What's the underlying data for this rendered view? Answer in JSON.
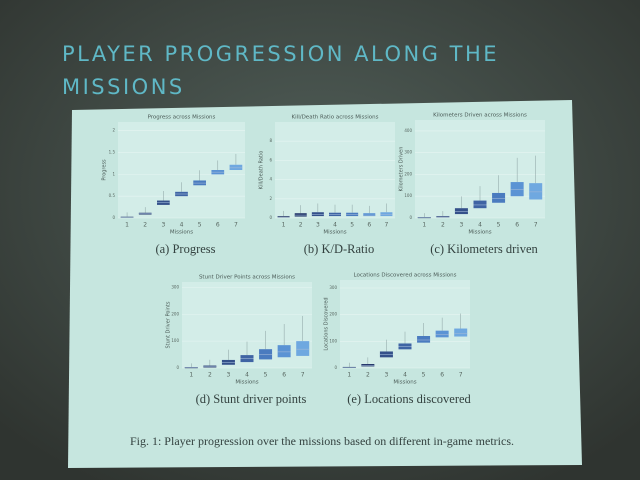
{
  "slide": {
    "title_lines": [
      "PLAYER PROGRESSION ALONG THE",
      "MISSIONS"
    ]
  },
  "figure_caption": "Fig. 1: Player progression over the missions based on different in-game metrics.",
  "box_colors": [
    "#1f2f5a",
    "#26386b",
    "#34508a",
    "#3f64a4",
    "#4a7bbf",
    "#5b93d4",
    "#6fa8e0"
  ],
  "chart_data": [
    {
      "type": "box",
      "title": "Progress across Missions",
      "ylabel": "Progress",
      "xlabel": "Missions",
      "caption": "(a) Progress",
      "categories": [
        "1",
        "2",
        "3",
        "4",
        "5",
        "6",
        "7"
      ],
      "ylim": [
        0,
        2.2
      ],
      "yticks": [
        0,
        0.5,
        1,
        1.5,
        2
      ],
      "q1": [
        0.01,
        0.08,
        0.3,
        0.5,
        0.75,
        1.0,
        1.1
      ],
      "median": [
        0.02,
        0.1,
        0.35,
        0.55,
        0.8,
        1.05,
        1.15
      ],
      "q3": [
        0.03,
        0.12,
        0.4,
        0.6,
        0.86,
        1.1,
        1.22
      ]
    },
    {
      "type": "box",
      "title": "Kill/Death Ratio across Missions",
      "ylabel": "Kill/Death Ratio",
      "xlabel": "Missions",
      "caption": "(b) K/D-Ratio",
      "categories": [
        "1",
        "2",
        "3",
        "4",
        "5",
        "6",
        "7"
      ],
      "ylim": [
        0,
        10
      ],
      "yticks": [
        0,
        2,
        4,
        6,
        8
      ],
      "q1": [
        0.05,
        0.15,
        0.2,
        0.2,
        0.2,
        0.2,
        0.2
      ],
      "median": [
        0.1,
        0.3,
        0.35,
        0.35,
        0.35,
        0.3,
        0.35
      ],
      "q3": [
        0.2,
        0.5,
        0.6,
        0.55,
        0.55,
        0.5,
        0.6
      ]
    },
    {
      "type": "box",
      "title": "Kilometers Driven across Missions",
      "ylabel": "Kilometers Driven",
      "xlabel": "Missions",
      "caption": "(c) Kilometers driven",
      "categories": [
        "1",
        "2",
        "3",
        "4",
        "5",
        "6",
        "7"
      ],
      "ylim": [
        0,
        450
      ],
      "yticks": [
        0,
        100,
        200,
        300,
        400
      ],
      "q1": [
        1,
        3,
        18,
        45,
        70,
        100,
        85
      ],
      "median": [
        2,
        5,
        30,
        60,
        90,
        130,
        120
      ],
      "q3": [
        4,
        9,
        45,
        80,
        115,
        165,
        160
      ]
    },
    {
      "type": "box",
      "title": "Stunt Driver Points across Missions",
      "ylabel": "Stunt Driver Points",
      "xlabel": "Missions",
      "caption": "(d) Stunt driver points",
      "categories": [
        "1",
        "2",
        "3",
        "4",
        "5",
        "6",
        "7"
      ],
      "ylim": [
        0,
        320
      ],
      "yticks": [
        0,
        100,
        200,
        300
      ],
      "q1": [
        1,
        2,
        12,
        22,
        32,
        40,
        45
      ],
      "median": [
        2,
        5,
        20,
        35,
        50,
        60,
        70
      ],
      "q3": [
        3,
        9,
        30,
        48,
        70,
        85,
        100
      ]
    },
    {
      "type": "box",
      "title": "Locations Discovered across Missions",
      "ylabel": "Locations Discovered",
      "xlabel": "Missions",
      "caption": "(e) Locations discovered",
      "categories": [
        "1",
        "2",
        "3",
        "4",
        "5",
        "6",
        "7"
      ],
      "ylim": [
        0,
        330
      ],
      "yticks": [
        0,
        100,
        200,
        300
      ],
      "q1": [
        1,
        6,
        40,
        70,
        95,
        115,
        118
      ],
      "median": [
        2,
        10,
        50,
        80,
        105,
        125,
        130
      ],
      "q3": [
        4,
        15,
        62,
        92,
        120,
        140,
        148
      ]
    }
  ]
}
